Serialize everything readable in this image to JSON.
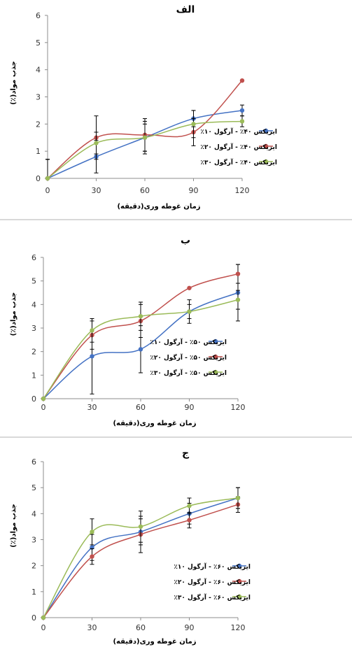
{
  "chart_data": [
    {
      "type": "line",
      "title": "الف",
      "xlabel": "زمان غوطه وری(دقیقه)",
      "ylabel": "جذب مواد(٪)",
      "x": [
        0,
        30,
        60,
        90,
        120
      ],
      "xlim": [
        0,
        120
      ],
      "ylim": [
        0,
        6
      ],
      "yticks": [
        0,
        1,
        2,
        3,
        4,
        5,
        6
      ],
      "grid": false,
      "legend_position": "right",
      "series": [
        {
          "name": "ایزیکس ۴۰٪ - آرگول ۱۰٪",
          "color": "#4472C4",
          "values": [
            0,
            0.8,
            1.5,
            2.2,
            2.5
          ],
          "errors": [
            0.7,
            0.6,
            0.6,
            0.3,
            0.2
          ]
        },
        {
          "name": "ایزیکس ۴۰٪ - آرگول ۲۰٪",
          "color": "#C0504D",
          "values": [
            0,
            1.5,
            1.6,
            1.7,
            3.6
          ],
          "errors": [
            0.7,
            0.8,
            0.6,
            0.5,
            0
          ]
        },
        {
          "name": "ایزیکس ۴۰٪ - آرگول ۳۰٪",
          "color": "#9BBB59",
          "values": [
            0,
            1.3,
            1.5,
            2.0,
            2.1
          ],
          "errors": [
            0.7,
            0.4,
            0.5,
            0.5,
            0.2
          ]
        }
      ]
    },
    {
      "type": "line",
      "title": "ب",
      "xlabel": "زمان غوطه وری(دقیقه)",
      "ylabel": "جذب مواد(٪)",
      "x": [
        0,
        30,
        60,
        90,
        120
      ],
      "xlim": [
        0,
        120
      ],
      "ylim": [
        0,
        6
      ],
      "yticks": [
        0,
        1,
        2,
        3,
        4,
        5,
        6
      ],
      "grid": false,
      "legend_position": "right",
      "series": [
        {
          "name": "ایزیکس ۵۰٪ - آرگول ۱۰٪",
          "color": "#4472C4",
          "values": [
            0,
            1.8,
            2.1,
            3.7,
            4.5
          ],
          "errors": [
            0,
            1.6,
            1.0,
            0.5,
            1.2
          ]
        },
        {
          "name": "ایزیکس ۵۰٪ - آرگول ۲۰٪",
          "color": "#C0504D",
          "values": [
            0,
            2.7,
            3.3,
            4.7,
            5.3
          ],
          "errors": [
            0,
            0.6,
            0.7,
            0,
            0.4
          ]
        },
        {
          "name": "ایزیکس ۵۰٪ - آرگول ۳۰٪",
          "color": "#9BBB59",
          "values": [
            0,
            2.9,
            3.5,
            3.7,
            4.2
          ],
          "errors": [
            0,
            0.5,
            0.6,
            0.3,
            0.4
          ]
        }
      ]
    },
    {
      "type": "line",
      "title": "ج",
      "xlabel": "زمان غوطه وری(دقیقه)",
      "ylabel": "جذب مواد(٪)",
      "x": [
        0,
        30,
        60,
        90,
        120
      ],
      "xlim": [
        0,
        120
      ],
      "ylim": [
        0,
        6
      ],
      "yticks": [
        0,
        1,
        2,
        3,
        4,
        5,
        6
      ],
      "grid": false,
      "legend_position": "right",
      "series": [
        {
          "name": "ایزیکس ۶۰٪ - آرگول ۱۰٪",
          "color": "#4472C4",
          "values": [
            0,
            2.7,
            3.3,
            4.0,
            4.6
          ],
          "errors": [
            0,
            0.5,
            0.5,
            0.4,
            0.4
          ]
        },
        {
          "name": "ایزیکس ۶۰٪ - آرگول ۲۰٪",
          "color": "#C0504D",
          "values": [
            0,
            2.35,
            3.2,
            3.75,
            4.35
          ],
          "errors": [
            0,
            0.3,
            0.7,
            0.3,
            0.3
          ]
        },
        {
          "name": "ایزیکس ۶۰٪ - آرگول ۳۰٪",
          "color": "#9BBB59",
          "values": [
            0,
            3.3,
            3.5,
            4.3,
            4.6
          ],
          "errors": [
            0,
            0.5,
            0.6,
            0.3,
            0.4
          ]
        }
      ]
    }
  ]
}
